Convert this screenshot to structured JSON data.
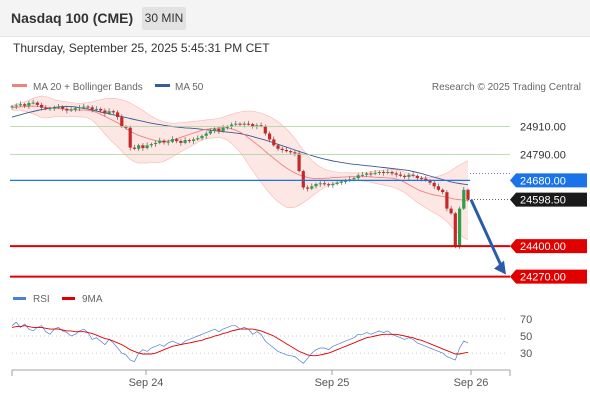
{
  "header": {
    "title": "Nasdaq 100 (CME)",
    "timeframe": "30 MIN",
    "datetime": "Thursday, September 25, 2025 5:45:31 PM CET"
  },
  "legend": {
    "ma20_label": "MA 20 + Bollinger Bands",
    "ma50_label": "MA 50",
    "copyright": "Research © 2025 Trading Central"
  },
  "rsi_legend": {
    "rsi_label": "RSI",
    "ma9_label": "9MA"
  },
  "colors": {
    "up_candle": "#2e9e48",
    "down_candle": "#c62828",
    "ma20": "#f08080",
    "bollinger_fill": "#fde3e1",
    "ma50": "#3a5a98",
    "blue_level": "#1a73e8",
    "red_level": "#e00000",
    "green_level": "#a5d49a",
    "arrow": "#2a5caa",
    "rsi": "#4d7fd6",
    "rsi_ma": "#e00000"
  },
  "chart_data": [
    {
      "type": "candlestick",
      "title": "Nasdaq 100 (CME)",
      "timeframe": "30 MIN",
      "x_ticks": [
        "Sep 24",
        "Sep 25",
        "Sep 26"
      ],
      "ylim": [
        24230,
        25040
      ],
      "current_price": 24598.5,
      "levels": [
        {
          "value": 24910.0,
          "label": "24910.00",
          "kind": "resistance"
        },
        {
          "value": 24790.0,
          "label": "24790.00",
          "kind": "resistance"
        },
        {
          "value": 24680.0,
          "label": "24680.00",
          "kind": "pivot"
        },
        {
          "value": 24598.5,
          "label": "24598.50",
          "kind": "last"
        },
        {
          "value": 24400.0,
          "label": "24400.00",
          "kind": "support"
        },
        {
          "value": 24270.0,
          "label": "24270.00",
          "kind": "support"
        }
      ],
      "closes": [
        24996,
        25000,
        25005,
        24998,
        25010,
        25012,
        25002,
        24990,
        24985,
        24988,
        24990,
        24994,
        24985,
        24978,
        24982,
        24988,
        24992,
        24995,
        24992,
        24982,
        24985,
        24978,
        24965,
        24975,
        24970,
        24950,
        24910,
        24905,
        24820,
        24815,
        24830,
        24818,
        24830,
        24835,
        24840,
        24850,
        24842,
        24845,
        24856,
        24848,
        24840,
        24852,
        24848,
        24855,
        24860,
        24870,
        24880,
        24890,
        24900,
        24890,
        24905,
        24910,
        24918,
        24922,
        24918,
        24922,
        24920,
        24910,
        24915,
        24912,
        24880,
        24855,
        24830,
        24815,
        24810,
        24805,
        24800,
        24795,
        24720,
        24650,
        24645,
        24655,
        24665,
        24668,
        24664,
        24660,
        24665,
        24670,
        24676,
        24678,
        24685,
        24690,
        24702,
        24704,
        24710,
        24708,
        24712,
        24716,
        24712,
        24716,
        24710,
        24705,
        24700,
        24695,
        24704,
        24700,
        24690,
        24688,
        24680,
        24670,
        24655,
        24640,
        24630,
        24560,
        24540,
        24400,
        24560,
        24640,
        24598.5
      ],
      "ma20": [
        24990,
        24992,
        24994,
        24995,
        24996,
        24997,
        24996,
        24994,
        24992,
        24990,
        24988,
        24987,
        24985,
        24983,
        24982,
        24981,
        24980,
        24980,
        24979,
        24976,
        24970,
        24962,
        24953,
        24944,
        24935,
        24926,
        24914,
        24902,
        24890,
        24880,
        24872,
        24866,
        24860,
        24855,
        24850,
        24846,
        24846,
        24848,
        24852,
        24858,
        24864,
        24870,
        24876,
        24882,
        24888,
        24894,
        24898,
        24900,
        24902,
        24904,
        24905,
        24904,
        24900,
        24894,
        24886,
        24876,
        24862,
        24848,
        24834,
        24820,
        24804,
        24789,
        24774,
        24760,
        24746,
        24733,
        24722,
        24712,
        24704,
        24698,
        24692,
        24689,
        24688,
        24688,
        24689,
        24690,
        24692,
        24693,
        24694,
        24695,
        24696,
        24696,
        24696,
        24696,
        24696,
        24695,
        24694,
        24693,
        24692,
        24691,
        24690,
        24686,
        24680,
        24672,
        24662,
        24652,
        24642,
        24634,
        24628,
        24622,
        24618,
        24615,
        24612,
        24608,
        24604,
        24600,
        24598,
        24596,
        24595
      ],
      "bb_upper": [
        25000,
        25005,
        25010,
        25015,
        25022,
        25030,
        25036,
        25040,
        25038,
        25032,
        25025,
        25020,
        25018,
        25015,
        25012,
        25010,
        25009,
        25010,
        25012,
        25015,
        25020,
        25025,
        25028,
        25030,
        25030,
        25028,
        25024,
        25018,
        25010,
        25000,
        24990,
        24978,
        24966,
        24954,
        24944,
        24936,
        24930,
        24926,
        24924,
        24924,
        24926,
        24928,
        24930,
        24932,
        24934,
        24936,
        24938,
        24940,
        24942,
        24945,
        24950,
        24956,
        24962,
        24968,
        24972,
        24975,
        24976,
        24975,
        24972,
        24967,
        24960,
        24952,
        24942,
        24930,
        24916,
        24900,
        24880,
        24858,
        24834,
        24810,
        24786,
        24766,
        24750,
        24738,
        24728,
        24722,
        24718,
        24716,
        24714,
        24713,
        24712,
        24712,
        24713,
        24714,
        24716,
        24718,
        24720,
        24722,
        24724,
        24726,
        24728,
        24726,
        24722,
        24716,
        24710,
        24704,
        24698,
        24694,
        24692,
        24692,
        24694,
        24698,
        24704,
        24712,
        24722,
        24734,
        24746,
        24756,
        24764
      ],
      "bb_lower": [
        24980,
        24979,
        24978,
        24975,
        24970,
        24964,
        24956,
        24948,
        24946,
        24948,
        24951,
        24954,
        24952,
        24951,
        24952,
        24952,
        24951,
        24950,
        24946,
        24937,
        24920,
        24899,
        24878,
        24858,
        24840,
        24824,
        24804,
        24786,
        24770,
        24760,
        24754,
        24754,
        24754,
        24756,
        24756,
        24756,
        24762,
        24770,
        24780,
        24792,
        24802,
        24812,
        24822,
        24832,
        24842,
        24852,
        24858,
        24860,
        24862,
        24863,
        24860,
        24852,
        24838,
        24820,
        24800,
        24777,
        24748,
        24721,
        24696,
        24673,
        24648,
        24626,
        24606,
        24590,
        24576,
        24566,
        24564,
        24566,
        24574,
        24586,
        24598,
        24612,
        24626,
        24638,
        24650,
        24658,
        24666,
        24670,
        24674,
        24677,
        24680,
        24680,
        24679,
        24678,
        24676,
        24672,
        24668,
        24664,
        24660,
        24656,
        24652,
        24646,
        24638,
        24628,
        24614,
        24600,
        24586,
        24574,
        24564,
        24552,
        24542,
        24532,
        24520,
        24504,
        24486,
        24466,
        24450,
        24436,
        24426
      ],
      "ma50": [
        24950,
        24955,
        24960,
        24965,
        24970,
        24974,
        24978,
        24982,
        24985,
        24988,
        24991,
        24993,
        24995,
        24996,
        24995,
        24993,
        24990,
        24987,
        24984,
        24980,
        24976,
        24972,
        24968,
        24964,
        24960,
        24956,
        24952,
        24948,
        24944,
        24940,
        24936,
        24932,
        24928,
        24924,
        24921,
        24918,
        24915,
        24912,
        24910,
        24908,
        24906,
        24904,
        24903,
        24902,
        24900,
        24898,
        24896,
        24894,
        24892,
        24890,
        24888,
        24886,
        24884,
        24882,
        24880,
        24876,
        24872,
        24867,
        24862,
        24857,
        24852,
        24846,
        24840,
        24834,
        24828,
        24822,
        24816,
        24810,
        24804,
        24798,
        24792,
        24786,
        24781,
        24776,
        24771,
        24767,
        24763,
        24760,
        24757,
        24754,
        24751,
        24749,
        24747,
        24745,
        24743,
        24741,
        24739,
        24737,
        24735,
        24733,
        24731,
        24729,
        24727,
        24725,
        24722,
        24718,
        24714,
        24709,
        24704,
        24699,
        24694,
        24689,
        24684,
        24679,
        24674,
        24670,
        24667,
        24664,
        24662
      ],
      "projection": {
        "from_value": 24598.5,
        "to_value": 24270.0
      }
    },
    {
      "type": "line",
      "title": "RSI",
      "series_names": [
        "RSI",
        "9MA"
      ],
      "ylim": [
        15,
        78
      ],
      "y_ticks": [
        70,
        50,
        30
      ],
      "rsi": [
        62,
        66,
        60,
        64,
        58,
        56,
        60,
        62,
        55,
        52,
        58,
        60,
        56,
        54,
        50,
        52,
        56,
        58,
        54,
        46,
        48,
        44,
        40,
        46,
        42,
        36,
        30,
        28,
        22,
        20,
        30,
        34,
        32,
        36,
        38,
        40,
        38,
        42,
        44,
        42,
        40,
        44,
        46,
        48,
        50,
        52,
        54,
        56,
        58,
        55,
        58,
        60,
        62,
        62,
        58,
        60,
        58,
        52,
        55,
        52,
        44,
        40,
        36,
        32,
        30,
        28,
        27,
        26,
        22,
        18,
        24,
        30,
        34,
        36,
        36,
        34,
        38,
        40,
        42,
        44,
        46,
        48,
        52,
        52,
        54,
        52,
        54,
        56,
        54,
        56,
        52,
        50,
        48,
        46,
        48,
        46,
        42,
        40,
        38,
        36,
        34,
        32,
        30,
        26,
        24,
        22,
        36,
        44,
        42
      ],
      "ma9": [
        60,
        61,
        61,
        62,
        61,
        60,
        60,
        60,
        59,
        58,
        58,
        58,
        57,
        56,
        56,
        55,
        55,
        55,
        54,
        53,
        51,
        49,
        47,
        46,
        44,
        42,
        40,
        37,
        34,
        32,
        30,
        29,
        29,
        29,
        30,
        32,
        34,
        36,
        38,
        39,
        40,
        41,
        42,
        43,
        44,
        45,
        47,
        48,
        50,
        51,
        53,
        54,
        56,
        57,
        58,
        58,
        58,
        58,
        57,
        56,
        54,
        52,
        50,
        47,
        44,
        41,
        38,
        35,
        32,
        30,
        28,
        27,
        27,
        28,
        29,
        30,
        32,
        34,
        36,
        38,
        40,
        42,
        44,
        46,
        48,
        49,
        50,
        51,
        52,
        52,
        52,
        52,
        51,
        50,
        49,
        48,
        46,
        45,
        43,
        41,
        39,
        37,
        35,
        33,
        31,
        29,
        29,
        30,
        31
      ]
    }
  ]
}
